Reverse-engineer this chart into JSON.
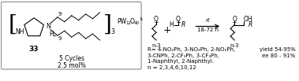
{
  "bg_color": "#ffffff",
  "box_color": "#888888",
  "text_color": "#1a1a1a",
  "figsize": [
    3.79,
    1.03
  ],
  "dpi": 100,
  "catalyst_label": "33",
  "catalyst_lines": [
    "5 Cycles",
    "2.5 mol%"
  ],
  "condition_line1": "rt",
  "condition_line2": "18-72 h",
  "R_line1": "R= 4-NO₂Ph, 3-NO₂Ph, 2-NO₂Ph,",
  "R_line2": "3-CNPh, 2-CF₃Ph, 3-CF₃Ph,",
  "R_line3": "1-Naphthyl, 2-Naphthyl.",
  "n_line": "n = 2,3,4,6,10,12",
  "yield_line1": "yield 54-95%",
  "yield_line2": "ee 80 - 91%",
  "bracket_subscript": "3"
}
